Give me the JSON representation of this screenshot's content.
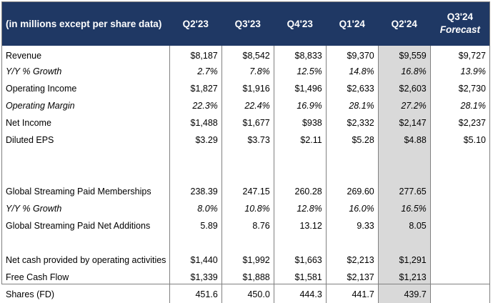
{
  "header": {
    "label": "(in millions except per share data)",
    "quarters": [
      "Q2'23",
      "Q3'23",
      "Q4'23",
      "Q1'24",
      "Q2'24"
    ],
    "forecast_line1": "Q3'24",
    "forecast_line2": "Forecast"
  },
  "rows": [
    {
      "label": "Revenue",
      "values": [
        "$8,187",
        "$8,542",
        "$8,833",
        "$9,370",
        "$9,559",
        "$9,727"
      ]
    },
    {
      "label": "Y/Y % Growth",
      "values": [
        "2.7%",
        "7.8%",
        "12.5%",
        "14.8%",
        "16.8%",
        "13.9%"
      ]
    },
    {
      "label": "Operating Income",
      "values": [
        "$1,827",
        "$1,916",
        "$1,496",
        "$2,633",
        "$2,603",
        "$2,730"
      ]
    },
    {
      "label": "Operating Margin",
      "values": [
        "22.3%",
        "22.4%",
        "16.9%",
        "28.1%",
        "27.2%",
        "28.1%"
      ]
    },
    {
      "label": "Net Income",
      "values": [
        "$1,488",
        "$1,677",
        "$938",
        "$2,332",
        "$2,147",
        "$2,237"
      ]
    },
    {
      "label": "Diluted EPS",
      "values": [
        "$3.29",
        "$3.73",
        "$2.11",
        "$5.28",
        "$4.88",
        "$5.10"
      ]
    },
    {
      "label": "Global Streaming Paid Memberships",
      "values": [
        "238.39",
        "247.15",
        "260.28",
        "269.60",
        "277.65",
        ""
      ]
    },
    {
      "label": "Y/Y % Growth",
      "values": [
        "8.0%",
        "10.8%",
        "12.8%",
        "16.0%",
        "16.5%",
        ""
      ]
    },
    {
      "label": "Global Streaming Paid Net Additions",
      "values": [
        "5.89",
        "8.76",
        "13.12",
        "9.33",
        "8.05",
        ""
      ]
    },
    {
      "label": "Net cash provided by operating activities",
      "values": [
        "$1,440",
        "$1,992",
        "$1,663",
        "$2,213",
        "$1,291",
        ""
      ]
    },
    {
      "label": "Free Cash Flow",
      "values": [
        "$1,339",
        "$1,888",
        "$1,581",
        "$2,137",
        "$1,213",
        ""
      ]
    },
    {
      "label": "Shares (FD)",
      "values": [
        "451.6",
        "450.0",
        "444.3",
        "441.7",
        "439.7",
        ""
      ]
    }
  ]
}
